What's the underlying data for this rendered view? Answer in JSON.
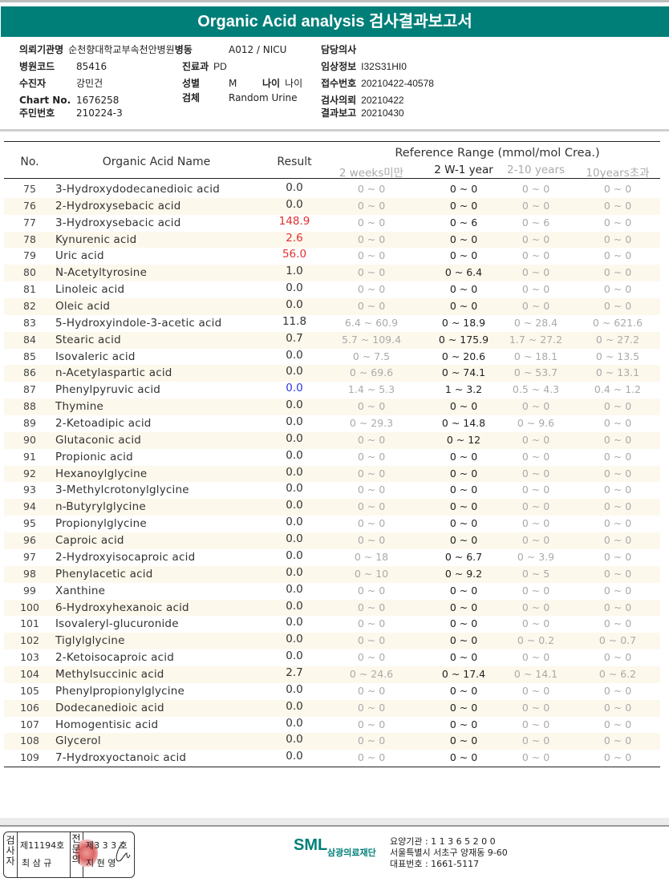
{
  "title": "Organic Acid analysis 검사결과보고서",
  "info": {
    "institution_label": "의뢰기관명",
    "institution": "순천향대학교부속천안병원",
    "ward_label": "병동",
    "ward": "A012 / NICU",
    "doctor_label": "담당의사",
    "hospital_code_label": "병원코드",
    "hospital_code": "85416",
    "dept_label": "진료과",
    "dept": "PD",
    "clinical_label": "임상정보",
    "clinical": "I32S31HI0",
    "patient_label": "수진자",
    "patient": "강민건",
    "sex_label": "성별",
    "sex": "M",
    "age_label": "나이",
    "age": "나이",
    "receipt_label": "접수번호",
    "receipt": "20210422-40578",
    "chart_label": "Chart No.",
    "chart": "1676258",
    "specimen_label": "검체",
    "specimen": "Random Urine",
    "request_label": "검사의뢰",
    "request": "20210422",
    "id_label": "주민번호",
    "id": "210224-3",
    "report_label": "결과보고",
    "report": "20210430"
  },
  "table": {
    "headers": {
      "no": "No.",
      "name": "Organic Acid Name",
      "result": "Result",
      "ref": "Reference Range (mmol/mol Crea.)",
      "ref_cols": [
        "2 weeks미만",
        "2 W-1 year",
        "2-10 years",
        "10years초과"
      ]
    },
    "colors": {
      "high": "#e03030",
      "low": "#2a3ae0",
      "normal": "#333333"
    },
    "rows": [
      {
        "no": "75",
        "name": "3-Hydroxydodecanedioic acid",
        "result": "0.0",
        "flag": "normal",
        "ref": [
          "0 ~ 0",
          "0 ~ 0",
          "0 ~ 0",
          "0 ~ 0"
        ]
      },
      {
        "no": "76",
        "name": "2-Hydroxysebacic acid",
        "result": "0.0",
        "flag": "normal",
        "ref": [
          "0 ~ 0",
          "0 ~ 0",
          "0 ~ 0",
          "0 ~ 0"
        ]
      },
      {
        "no": "77",
        "name": "3-Hydroxysebacic acid",
        "result": "148.9",
        "flag": "high",
        "ref": [
          "0 ~ 0",
          "0 ~ 6",
          "0 ~ 6",
          "0 ~ 0"
        ]
      },
      {
        "no": "78",
        "name": "Kynurenic acid",
        "result": "2.6",
        "flag": "high",
        "ref": [
          "0 ~ 0",
          "0 ~ 0",
          "0 ~ 0",
          "0 ~ 0"
        ]
      },
      {
        "no": "79",
        "name": "Uric acid",
        "result": "56.0",
        "flag": "high",
        "ref": [
          "0 ~ 0",
          "0 ~ 0",
          "0 ~ 0",
          "0 ~ 0"
        ]
      },
      {
        "no": "80",
        "name": "N-Acetyltyrosine",
        "result": "1.0",
        "flag": "normal",
        "ref": [
          "0 ~ 0",
          "0 ~ 6.4",
          "0 ~ 0",
          "0 ~ 0"
        ]
      },
      {
        "no": "81",
        "name": "Linoleic acid",
        "result": "0.0",
        "flag": "normal",
        "ref": [
          "0 ~ 0",
          "0 ~ 0",
          "0 ~ 0",
          "0 ~ 0"
        ]
      },
      {
        "no": "82",
        "name": "Oleic acid",
        "result": "0.0",
        "flag": "normal",
        "ref": [
          "0 ~ 0",
          "0 ~ 0",
          "0 ~ 0",
          "0 ~ 0"
        ]
      },
      {
        "no": "83",
        "name": "5-Hydroxyindole-3-acetic acid",
        "result": "11.8",
        "flag": "normal",
        "ref": [
          "6.4 ~ 60.9",
          "0 ~ 18.9",
          "0 ~ 28.4",
          "0 ~ 621.6"
        ]
      },
      {
        "no": "84",
        "name": "Stearic acid",
        "result": "0.7",
        "flag": "normal",
        "ref": [
          "5.7 ~ 109.4",
          "0 ~ 175.9",
          "1.7 ~ 27.2",
          "0 ~ 27.2"
        ]
      },
      {
        "no": "85",
        "name": "Isovaleric acid",
        "result": "0.0",
        "flag": "normal",
        "ref": [
          "0 ~ 7.5",
          "0 ~ 20.6",
          "0 ~ 18.1",
          "0 ~ 13.5"
        ]
      },
      {
        "no": "86",
        "name": "n-Acetylaspartic acid",
        "result": "0.0",
        "flag": "normal",
        "ref": [
          "0 ~ 69.6",
          "0 ~ 74.1",
          "0 ~ 53.7",
          "0 ~ 13.1"
        ]
      },
      {
        "no": "87",
        "name": "Phenylpyruvic acid",
        "result": "0.0",
        "flag": "low",
        "ref": [
          "1.4 ~ 5.3",
          "1 ~ 3.2",
          "0.5 ~ 4.3",
          "0.4 ~ 1.2"
        ]
      },
      {
        "no": "88",
        "name": "Thymine",
        "result": "0.0",
        "flag": "normal",
        "ref": [
          "0 ~ 0",
          "0 ~ 0",
          "0 ~ 0",
          "0 ~ 0"
        ]
      },
      {
        "no": "89",
        "name": "2-Ketoadipic acid",
        "result": "0.0",
        "flag": "normal",
        "ref": [
          "0 ~ 29.3",
          "0 ~ 14.8",
          "0 ~ 9.6",
          "0 ~ 0"
        ]
      },
      {
        "no": "90",
        "name": "Glutaconic acid",
        "result": "0.0",
        "flag": "normal",
        "ref": [
          "0 ~ 0",
          "0 ~ 12",
          "0 ~ 0",
          "0 ~ 0"
        ]
      },
      {
        "no": "91",
        "name": "Propionic acid",
        "result": "0.0",
        "flag": "normal",
        "ref": [
          "0 ~ 0",
          "0 ~ 0",
          "0 ~ 0",
          "0 ~ 0"
        ]
      },
      {
        "no": "92",
        "name": "Hexanoylglycine",
        "result": "0.0",
        "flag": "normal",
        "ref": [
          "0 ~ 0",
          "0 ~ 0",
          "0 ~ 0",
          "0 ~ 0"
        ]
      },
      {
        "no": "93",
        "name": "3-Methylcrotonylglycine",
        "result": "0.0",
        "flag": "normal",
        "ref": [
          "0 ~ 0",
          "0 ~ 0",
          "0 ~ 0",
          "0 ~ 0"
        ]
      },
      {
        "no": "94",
        "name": "n-Butyrylglycine",
        "result": "0.0",
        "flag": "normal",
        "ref": [
          "0 ~ 0",
          "0 ~ 0",
          "0 ~ 0",
          "0 ~ 0"
        ]
      },
      {
        "no": "95",
        "name": "Propionylglycine",
        "result": "0.0",
        "flag": "normal",
        "ref": [
          "0 ~ 0",
          "0 ~ 0",
          "0 ~ 0",
          "0 ~ 0"
        ]
      },
      {
        "no": "96",
        "name": "Caproic acid",
        "result": "0.0",
        "flag": "normal",
        "ref": [
          "0 ~ 0",
          "0 ~ 0",
          "0 ~ 0",
          "0 ~ 0"
        ]
      },
      {
        "no": "97",
        "name": "2-Hydroxyisocaproic acid",
        "result": "0.0",
        "flag": "normal",
        "ref": [
          "0 ~ 18",
          "0 ~ 6.7",
          "0 ~ 3.9",
          "0 ~ 0"
        ]
      },
      {
        "no": "98",
        "name": "Phenylacetic acid",
        "result": "0.0",
        "flag": "normal",
        "ref": [
          "0 ~ 10",
          "0 ~ 9.2",
          "0 ~ 5",
          "0 ~ 0"
        ]
      },
      {
        "no": "99",
        "name": "Xanthine",
        "result": "0.0",
        "flag": "normal",
        "ref": [
          "0 ~ 0",
          "0 ~ 0",
          "0 ~ 0",
          "0 ~ 0"
        ]
      },
      {
        "no": "100",
        "name": "6-Hydroxyhexanoic acid",
        "result": "0.0",
        "flag": "normal",
        "ref": [
          "0 ~ 0",
          "0 ~ 0",
          "0 ~ 0",
          "0 ~ 0"
        ]
      },
      {
        "no": "101",
        "name": "Isovaleryl-glucuronide",
        "result": "0.0",
        "flag": "normal",
        "ref": [
          "0 ~ 0",
          "0 ~ 0",
          "0 ~ 0",
          "0 ~ 0"
        ]
      },
      {
        "no": "102",
        "name": "Tiglylglycine",
        "result": "0.0",
        "flag": "normal",
        "ref": [
          "0 ~ 0",
          "0 ~ 0",
          "0 ~ 0.2",
          "0 ~ 0.7"
        ]
      },
      {
        "no": "103",
        "name": "2-Ketoisocaproic acid",
        "result": "0.0",
        "flag": "normal",
        "ref": [
          "0 ~ 0",
          "0 ~ 0",
          "0 ~ 0",
          "0 ~ 0"
        ]
      },
      {
        "no": "104",
        "name": "Methylsuccinic acid",
        "result": "2.7",
        "flag": "normal",
        "ref": [
          "0 ~ 24.6",
          "0 ~ 17.4",
          "0 ~ 14.1",
          "0 ~ 6.2"
        ]
      },
      {
        "no": "105",
        "name": "Phenylpropionylglycine",
        "result": "0.0",
        "flag": "normal",
        "ref": [
          "0 ~ 0",
          "0 ~ 0",
          "0 ~ 0",
          "0 ~ 0"
        ]
      },
      {
        "no": "106",
        "name": "Dodecanedioic acid",
        "result": "0.0",
        "flag": "normal",
        "ref": [
          "0 ~ 0",
          "0 ~ 0",
          "0 ~ 0",
          "0 ~ 0"
        ]
      },
      {
        "no": "107",
        "name": "Homogentisic acid",
        "result": "0.0",
        "flag": "normal",
        "ref": [
          "0 ~ 0",
          "0 ~ 0",
          "0 ~ 0",
          "0 ~ 0"
        ]
      },
      {
        "no": "108",
        "name": "Glycerol",
        "result": "0.0",
        "flag": "normal",
        "ref": [
          "0 ~ 0",
          "0 ~ 0",
          "0 ~ 0",
          "0 ~ 0"
        ]
      },
      {
        "no": "109",
        "name": "7-Hydroxyoctanoic acid",
        "result": "0.0",
        "flag": "normal",
        "ref": [
          "0 ~ 0",
          "0 ~ 0",
          "0 ~ 0",
          "0 ~ 0"
        ]
      }
    ]
  },
  "footer": {
    "examiner_label": "검사자",
    "examiner_no": "제11194호",
    "examiner_name": "최 삼 규",
    "confirm_label": "전문의",
    "confirm_no": "제3 3 3 호",
    "confirm_name": "지 현 영",
    "logo": "SML",
    "foundation": "삼광의료재단",
    "code": "요양기관 : 1 1 3 6 5 2 0 0",
    "address": "서울특별시 서초구 양재동 9-60",
    "phone": "대표번호 : 1661-5117"
  }
}
